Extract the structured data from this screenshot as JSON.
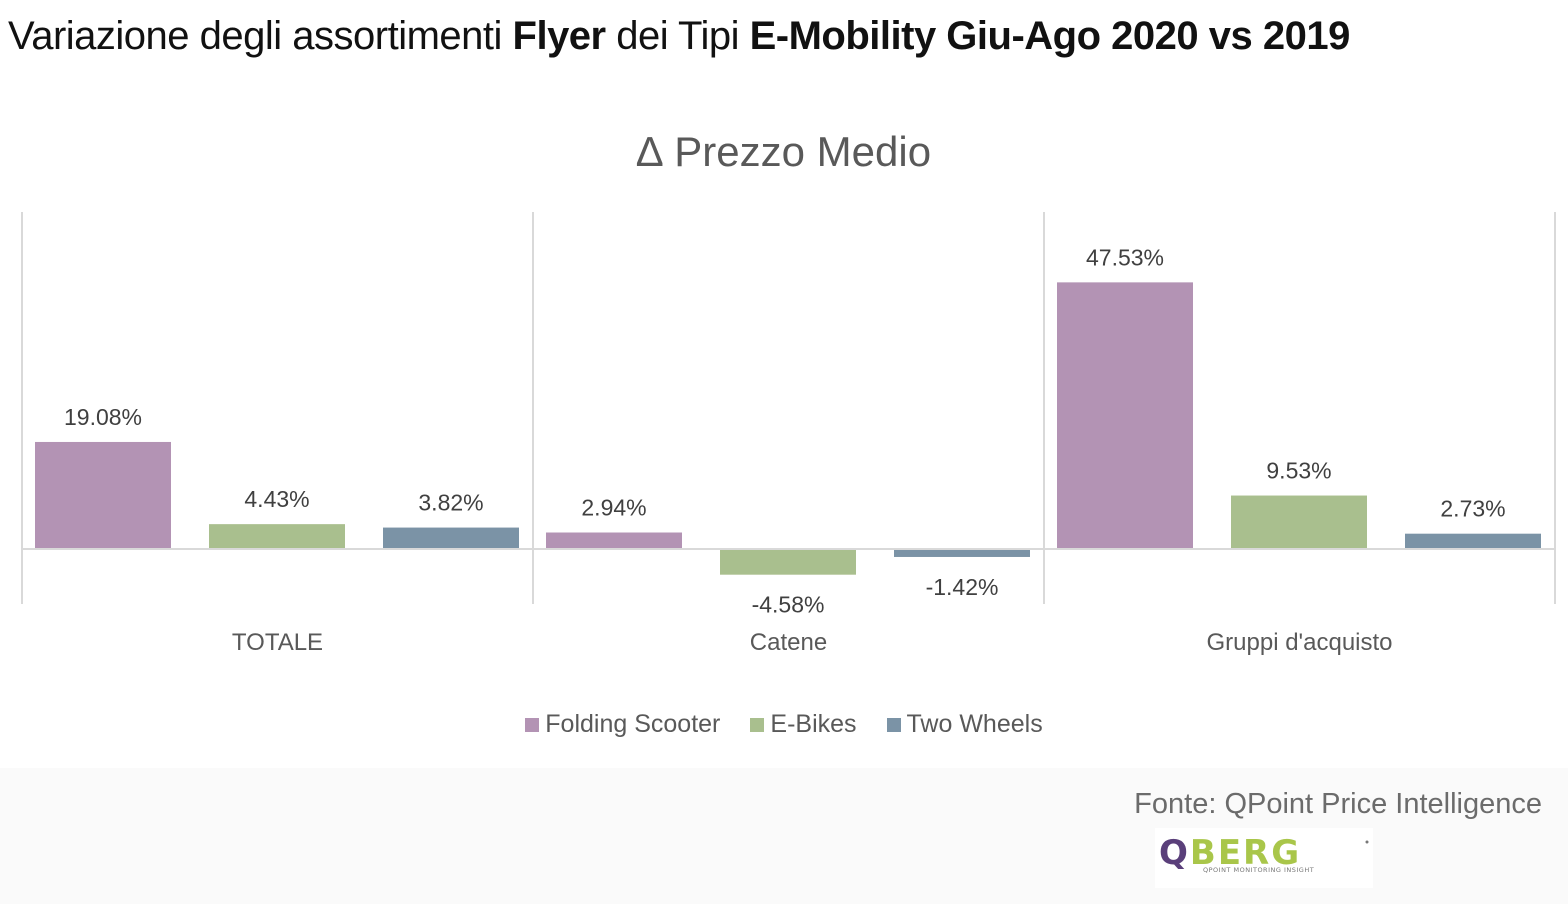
{
  "page_title": {
    "p1": "Variazione degli assortimenti ",
    "p2": "Flyer",
    "p3": " dei Tipi ",
    "p4": "E-Mobility Giu-Ago 2020 vs 2019"
  },
  "chart_data": {
    "type": "bar",
    "title": "∆ Prezzo Medio",
    "categories": [
      "TOTALE",
      "Catene",
      "Gruppi d'acquisto"
    ],
    "series": [
      {
        "name": "Folding Scooter",
        "color": "#b393b4",
        "values": [
          19.08,
          2.94,
          47.53
        ],
        "labels": [
          "19.08%",
          "2.94%",
          "47.53%"
        ]
      },
      {
        "name": "E-Bikes",
        "color": "#a9bf8e",
        "values": [
          4.43,
          -4.58,
          9.53
        ],
        "labels": [
          "4.43%",
          "-4.58%",
          "9.53%"
        ]
      },
      {
        "name": "Two Wheels",
        "color": "#7b93a6",
        "values": [
          3.82,
          -1.42,
          2.73
        ],
        "labels": [
          "3.82%",
          "-1.42%",
          "2.73%"
        ]
      }
    ],
    "xlabel": "",
    "ylabel": "",
    "ylim": [
      -10,
      60
    ],
    "legend_position": "bottom",
    "grid": false
  },
  "footer": {
    "source": "Fonte: QPoint Price Intelligence",
    "logo_text": "QBERG",
    "logo_tagline": "QPOINT MONITORING INSIGHT"
  }
}
